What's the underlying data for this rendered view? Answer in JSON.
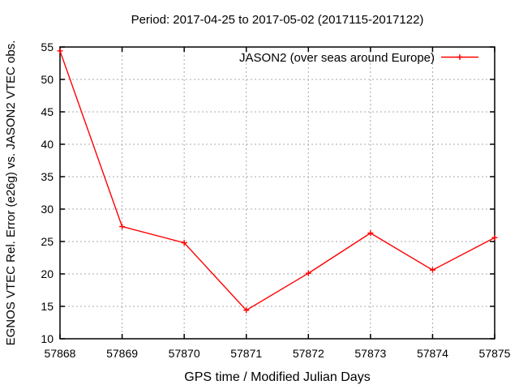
{
  "title": "Period: 2017-04-25 to 2017-05-02 (2017115-2017122)",
  "colors": {
    "series": "#ff0000",
    "grid": "#a8a8a8",
    "axis": "#000000",
    "text": "#000000",
    "background": "#ffffff"
  },
  "legend": {
    "label": "JASON2 (over seas around Europe)"
  },
  "chart_data": {
    "type": "line",
    "title": "Period: 2017-04-25 to 2017-05-02 (2017115-2017122)",
    "xlabel": "GPS time / Modified Julian Days",
    "ylabel": "EGNOS VTEC Rel. Error (e26g) vs. JASON2 VTEC obs.",
    "x": [
      57868,
      57869,
      57870,
      57871,
      57872,
      57873,
      57874,
      57875
    ],
    "series": [
      {
        "name": "JASON2 (over seas around Europe)",
        "values": [
          54.4,
          27.3,
          24.8,
          14.4,
          20.1,
          26.3,
          20.6,
          25.6
        ],
        "color": "#ff0000",
        "marker": "plus"
      }
    ],
    "xlim": [
      57868,
      57875
    ],
    "ylim": [
      10,
      55
    ],
    "xticks": [
      57868,
      57869,
      57870,
      57871,
      57872,
      57873,
      57874,
      57875
    ],
    "yticks": [
      10,
      15,
      20,
      25,
      30,
      35,
      40,
      45,
      50,
      55
    ],
    "grid": true,
    "legend_position": "top-right-inside"
  }
}
